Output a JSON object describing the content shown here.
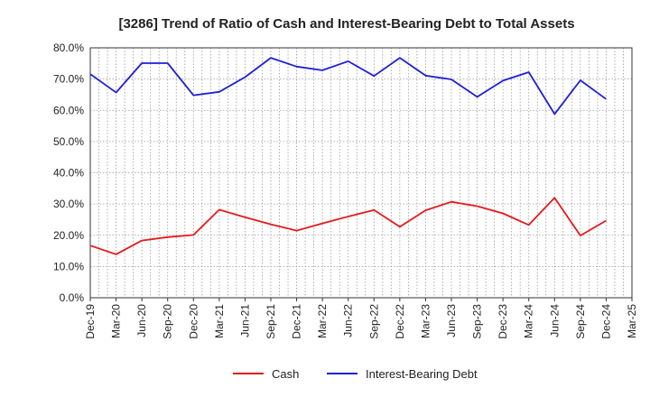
{
  "chart_data": {
    "type": "line",
    "title": "[3286]  Trend of Ratio of Cash and Interest-Bearing Debt to Total Assets",
    "xlabel": "",
    "ylabel": "",
    "ylim": [
      0,
      80
    ],
    "yticks": [
      "0.0%",
      "10.0%",
      "20.0%",
      "30.0%",
      "40.0%",
      "50.0%",
      "60.0%",
      "70.0%",
      "80.0%"
    ],
    "categories": [
      "Dec-19",
      "Mar-20",
      "Jun-20",
      "Sep-20",
      "Dec-20",
      "Mar-21",
      "Jun-21",
      "Sep-21",
      "Dec-21",
      "Mar-22",
      "Jun-22",
      "Sep-22",
      "Dec-22",
      "Mar-23",
      "Jun-23",
      "Sep-23",
      "Dec-23",
      "Mar-24",
      "Jun-24",
      "Sep-24",
      "Dec-24",
      "Mar-25"
    ],
    "grid": true,
    "legend_position": "bottom",
    "series": [
      {
        "name": "Cash",
        "color": "#e41a1c",
        "values": [
          16.7,
          13.9,
          18.3,
          19.4,
          20.1,
          28.2,
          25.8,
          23.5,
          21.5,
          23.8,
          26.0,
          28.1,
          22.7,
          28.0,
          30.7,
          29.3,
          27.0,
          23.3,
          32.0,
          19.9,
          24.7,
          null
        ]
      },
      {
        "name": "Interest-Bearing Debt",
        "color": "#1f1fd6",
        "values": [
          71.6,
          65.7,
          75.1,
          75.1,
          64.8,
          65.9,
          70.6,
          76.8,
          74.0,
          72.8,
          75.7,
          71.0,
          76.8,
          71.1,
          69.9,
          64.3,
          69.5,
          72.2,
          58.8,
          69.6,
          63.6,
          null
        ]
      }
    ]
  }
}
